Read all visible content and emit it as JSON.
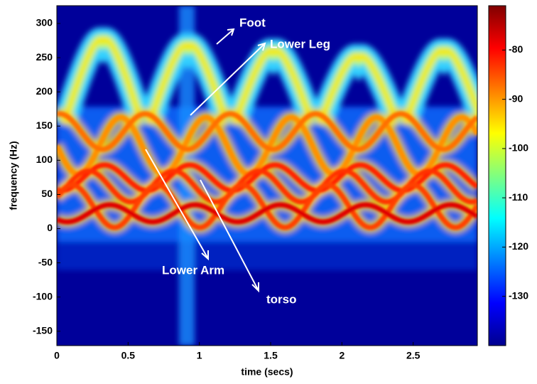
{
  "chart_data": {
    "type": "spectrogram",
    "xlabel": "time (secs)",
    "ylabel": "frequency (Hz)",
    "xlim": [
      0,
      2.95
    ],
    "xticks": [
      0,
      0.5,
      1,
      1.5,
      2,
      2.5
    ],
    "ylim": [
      -171,
      326
    ],
    "yticks": [
      -150,
      -100,
      -50,
      0,
      50,
      100,
      150,
      200,
      250,
      300
    ],
    "colorbar": {
      "lim": [
        -140,
        -71
      ],
      "ticks": [
        -130,
        -120,
        -110,
        -100,
        -90,
        -80
      ]
    },
    "annotations": [
      "Foot",
      "Lower Leg",
      "Lower Arm",
      "torso"
    ]
  }
}
